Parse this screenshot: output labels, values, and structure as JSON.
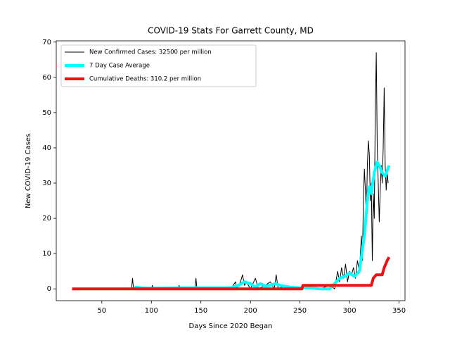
{
  "chart_data": {
    "type": "line",
    "title": "COVID-19 Stats For Garrett County, MD",
    "x_label": "Days Since 2020 Began",
    "y_label": "New COVID-19 Cases",
    "xlim": [
      4,
      356
    ],
    "ylim": [
      -3.35,
      70.35
    ],
    "xticks": [
      50,
      100,
      150,
      200,
      250,
      300,
      350
    ],
    "yticks": [
      0,
      10,
      20,
      30,
      40,
      50,
      60,
      70
    ],
    "legend": "upper left",
    "series": [
      {
        "name": "New Confirmed Cases: 32500 per million",
        "color": "#000000",
        "x": [
          20,
          80,
          81,
          82,
          100,
          101,
          102,
          127,
          128,
          129,
          144,
          145,
          146,
          180,
          185,
          186,
          190,
          192,
          194,
          196,
          200,
          205,
          208,
          215,
          220,
          224,
          226,
          228,
          235,
          240,
          250,
          260,
          262,
          270,
          280,
          285,
          288,
          290,
          292,
          294,
          296,
          298,
          300,
          302,
          304,
          306,
          308,
          310,
          312,
          313,
          314,
          315,
          316,
          317,
          318,
          319,
          320,
          321,
          322,
          323,
          324,
          325,
          326,
          327,
          328,
          329,
          330,
          331,
          332,
          333,
          334,
          335,
          336,
          337,
          338,
          339
        ],
        "values": [
          0,
          0,
          3,
          0,
          0,
          1,
          0,
          0,
          1,
          0,
          0,
          3,
          0,
          0,
          2,
          0,
          2,
          4,
          1,
          2,
          0,
          3,
          0,
          1,
          2,
          0,
          4,
          0,
          1,
          0,
          0,
          1,
          0,
          0,
          1,
          0,
          5,
          2,
          6,
          3,
          7,
          2,
          5,
          4,
          6,
          3,
          8,
          5,
          15,
          8,
          25,
          34,
          28,
          20,
          35,
          42,
          38,
          25,
          30,
          8,
          27,
          20,
          50,
          67,
          40,
          30,
          19,
          28,
          35,
          30,
          40,
          57,
          35,
          28,
          33,
          30
        ]
      },
      {
        "name": "7 Day Case Average",
        "color": "#00ffff",
        "x": [
          83,
          90,
          100,
          130,
          150,
          180,
          188,
          194,
          200,
          205,
          210,
          215,
          220,
          225,
          230,
          240,
          250,
          260,
          270,
          280,
          285,
          290,
          295,
          300,
          305,
          310,
          315,
          318,
          320,
          322,
          325,
          328,
          330,
          333,
          336,
          340
        ],
        "values": [
          0.5,
          0.3,
          0.2,
          0.3,
          0.3,
          0.3,
          1,
          2,
          1.5,
          0.5,
          1.5,
          0.8,
          1,
          1.5,
          1,
          0.5,
          0.3,
          0.3,
          0,
          0,
          1.5,
          3,
          3.5,
          4.5,
          3.5,
          5,
          15,
          25,
          29,
          27,
          33,
          36,
          35,
          33,
          32,
          35
        ]
      },
      {
        "name": "Cumulative Deaths: 310.2 per million",
        "color": "#ee1111",
        "x": [
          20,
          252,
          253,
          322,
          324,
          327,
          333,
          335,
          338,
          340
        ],
        "values": [
          0,
          0,
          1,
          1,
          3,
          4,
          4,
          6,
          8,
          9
        ]
      }
    ]
  }
}
